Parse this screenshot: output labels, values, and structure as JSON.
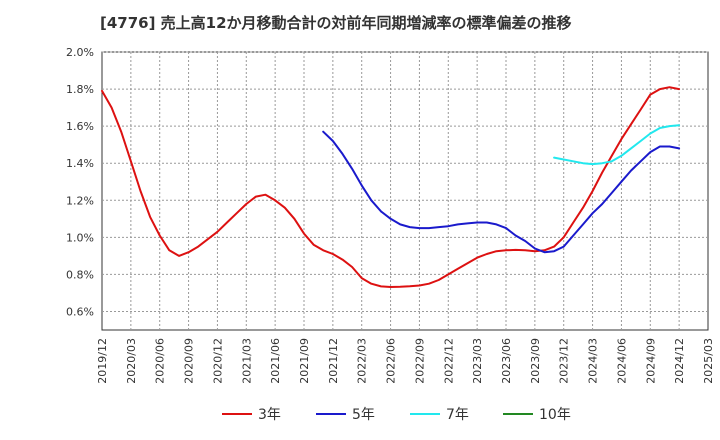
{
  "chart_data": {
    "type": "line",
    "title": "[4776]  売上高12か月移動合計の対前年同期増減率の標準偏差の推移",
    "xlabel": "",
    "ylabel": "",
    "ylim": [
      0.5,
      2.0
    ],
    "y_ticks": [
      "2.0%",
      "1.8%",
      "1.6%",
      "1.4%",
      "1.2%",
      "1.0%",
      "0.8%",
      "0.6%"
    ],
    "y_tick_values": [
      2.0,
      1.8,
      1.6,
      1.4,
      1.2,
      1.0,
      0.8,
      0.6
    ],
    "x_ticks": [
      "2019/12",
      "2020/03",
      "2020/06",
      "2020/09",
      "2020/12",
      "2021/03",
      "2021/06",
      "2021/09",
      "2021/12",
      "2022/03",
      "2022/06",
      "2022/09",
      "2022/12",
      "2023/03",
      "2023/06",
      "2023/09",
      "2023/12",
      "2024/03",
      "2024/06",
      "2024/09",
      "2024/12",
      "2025/03"
    ],
    "grid": true,
    "legend_position": "bottom",
    "series": [
      {
        "name": "3年",
        "color": "#dd1111",
        "points": [
          [
            "2019/12",
            1.79
          ],
          [
            "2020/01",
            1.7
          ],
          [
            "2020/02",
            1.57
          ],
          [
            "2020/03",
            1.41
          ],
          [
            "2020/04",
            1.25
          ],
          [
            "2020/05",
            1.11
          ],
          [
            "2020/06",
            1.01
          ],
          [
            "2020/07",
            0.93
          ],
          [
            "2020/08",
            0.9
          ],
          [
            "2020/09",
            0.92
          ],
          [
            "2020/10",
            0.95
          ],
          [
            "2020/11",
            0.99
          ],
          [
            "2020/12",
            1.03
          ],
          [
            "2021/01",
            1.08
          ],
          [
            "2021/02",
            1.13
          ],
          [
            "2021/03",
            1.18
          ],
          [
            "2021/04",
            1.22
          ],
          [
            "2021/05",
            1.23
          ],
          [
            "2021/06",
            1.2
          ],
          [
            "2021/07",
            1.16
          ],
          [
            "2021/08",
            1.1
          ],
          [
            "2021/09",
            1.02
          ],
          [
            "2021/10",
            0.96
          ],
          [
            "2021/11",
            0.93
          ],
          [
            "2021/12",
            0.91
          ],
          [
            "2022/01",
            0.88
          ],
          [
            "2022/02",
            0.84
          ],
          [
            "2022/03",
            0.78
          ],
          [
            "2022/04",
            0.75
          ],
          [
            "2022/05",
            0.735
          ],
          [
            "2022/06",
            0.732
          ],
          [
            "2022/07",
            0.733
          ],
          [
            "2022/08",
            0.736
          ],
          [
            "2022/09",
            0.74
          ],
          [
            "2022/10",
            0.75
          ],
          [
            "2022/11",
            0.77
          ],
          [
            "2022/12",
            0.8
          ],
          [
            "2023/01",
            0.83
          ],
          [
            "2023/02",
            0.86
          ],
          [
            "2023/03",
            0.89
          ],
          [
            "2023/04",
            0.91
          ],
          [
            "2023/05",
            0.925
          ],
          [
            "2023/06",
            0.93
          ],
          [
            "2023/07",
            0.932
          ],
          [
            "2023/08",
            0.93
          ],
          [
            "2023/09",
            0.925
          ],
          [
            "2023/10",
            0.93
          ],
          [
            "2023/11",
            0.95
          ],
          [
            "2023/12",
            1.0
          ],
          [
            "2024/01",
            1.08
          ],
          [
            "2024/02",
            1.16
          ],
          [
            "2024/03",
            1.25
          ],
          [
            "2024/04",
            1.35
          ],
          [
            "2024/05",
            1.44
          ],
          [
            "2024/06",
            1.53
          ],
          [
            "2024/07",
            1.61
          ],
          [
            "2024/08",
            1.69
          ],
          [
            "2024/09",
            1.77
          ],
          [
            "2024/10",
            1.8
          ],
          [
            "2024/11",
            1.81
          ],
          [
            "2024/12",
            1.8
          ]
        ]
      },
      {
        "name": "5年",
        "color": "#1a1acc",
        "points": [
          [
            "2021/11",
            1.57
          ],
          [
            "2021/12",
            1.52
          ],
          [
            "2022/01",
            1.45
          ],
          [
            "2022/02",
            1.37
          ],
          [
            "2022/03",
            1.28
          ],
          [
            "2022/04",
            1.2
          ],
          [
            "2022/05",
            1.14
          ],
          [
            "2022/06",
            1.1
          ],
          [
            "2022/07",
            1.07
          ],
          [
            "2022/08",
            1.055
          ],
          [
            "2022/09",
            1.05
          ],
          [
            "2022/10",
            1.05
          ],
          [
            "2022/11",
            1.055
          ],
          [
            "2022/12",
            1.06
          ],
          [
            "2023/01",
            1.07
          ],
          [
            "2023/02",
            1.075
          ],
          [
            "2023/03",
            1.08
          ],
          [
            "2023/04",
            1.08
          ],
          [
            "2023/05",
            1.07
          ],
          [
            "2023/06",
            1.05
          ],
          [
            "2023/07",
            1.01
          ],
          [
            "2023/08",
            0.98
          ],
          [
            "2023/09",
            0.94
          ],
          [
            "2023/10",
            0.92
          ],
          [
            "2023/11",
            0.925
          ],
          [
            "2023/12",
            0.95
          ],
          [
            "2024/01",
            1.01
          ],
          [
            "2024/02",
            1.07
          ],
          [
            "2024/03",
            1.13
          ],
          [
            "2024/04",
            1.18
          ],
          [
            "2024/05",
            1.24
          ],
          [
            "2024/06",
            1.3
          ],
          [
            "2024/07",
            1.36
          ],
          [
            "2024/08",
            1.41
          ],
          [
            "2024/09",
            1.46
          ],
          [
            "2024/10",
            1.49
          ],
          [
            "2024/11",
            1.49
          ],
          [
            "2024/12",
            1.48
          ]
        ]
      },
      {
        "name": "7年",
        "color": "#22e8ee",
        "points": [
          [
            "2023/11",
            1.43
          ],
          [
            "2023/12",
            1.42
          ],
          [
            "2024/01",
            1.41
          ],
          [
            "2024/02",
            1.4
          ],
          [
            "2024/03",
            1.395
          ],
          [
            "2024/04",
            1.4
          ],
          [
            "2024/05",
            1.41
          ],
          [
            "2024/06",
            1.44
          ],
          [
            "2024/07",
            1.48
          ],
          [
            "2024/08",
            1.52
          ],
          [
            "2024/09",
            1.56
          ],
          [
            "2024/10",
            1.59
          ],
          [
            "2024/11",
            1.6
          ],
          [
            "2024/12",
            1.605
          ]
        ]
      },
      {
        "name": "10年",
        "color": "#228822",
        "points": []
      }
    ]
  }
}
